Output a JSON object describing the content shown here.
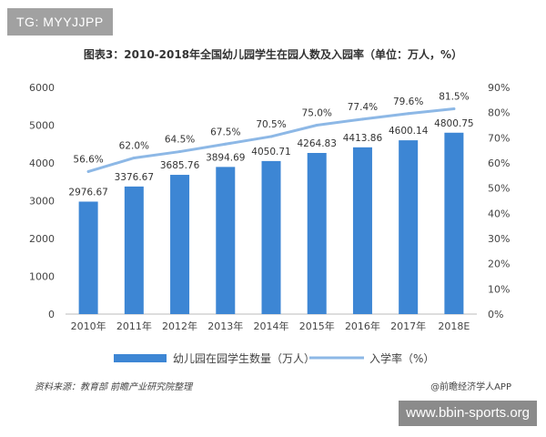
{
  "watermarks": {
    "tg": "TG: MYYJJPP",
    "site": "www.bbin-sports.org"
  },
  "footer": {
    "source": "资料来源：教育部  前瞻产业研究院整理",
    "credit": "@前瞻经济学人APP"
  },
  "colors": {
    "bar": "#3d86d4",
    "line": "#8db8e6",
    "axis_text": "#444444",
    "title": "#333333"
  },
  "chart_data": {
    "type": "bar",
    "title": "图表3：2010-2018年全国幼儿园学生在园人数及入园率（单位：万人，%）",
    "categories": [
      "2010年",
      "2011年",
      "2012年",
      "2013年",
      "2014年",
      "2015年",
      "2016年",
      "2017年",
      "2018E"
    ],
    "series": [
      {
        "name": "幼儿园在园学生数量（万人）",
        "type": "bar",
        "axis": "left",
        "values": [
          2976.67,
          3376.67,
          3685.76,
          3894.69,
          4050.71,
          4264.83,
          4413.86,
          4600.14,
          4800.75
        ],
        "labels": [
          "2976.67",
          "3376.67",
          "3685.76",
          "3894.69",
          "4050.71",
          "4264.83",
          "4413.86",
          "4600.14",
          "4800.75"
        ]
      },
      {
        "name": "入学率（%）",
        "type": "line",
        "axis": "right",
        "values": [
          56.6,
          62.0,
          64.5,
          67.5,
          70.5,
          75.0,
          77.4,
          79.6,
          81.5
        ],
        "labels": [
          "56.6%",
          "62.0%",
          "64.5%",
          "67.5%",
          "70.5%",
          "75.0%",
          "77.4%",
          "79.6%",
          "81.5%"
        ]
      }
    ],
    "y_left": {
      "ylim": [
        0,
        6000
      ],
      "ticks": [
        "0",
        "1000",
        "2000",
        "3000",
        "4000",
        "5000",
        "6000"
      ]
    },
    "y_right": {
      "ylim": [
        0,
        90
      ],
      "ticks": [
        "0%",
        "10%",
        "20%",
        "30%",
        "40%",
        "50%",
        "60%",
        "70%",
        "80%",
        "90%"
      ]
    },
    "grid": false,
    "legend": "bottom"
  }
}
